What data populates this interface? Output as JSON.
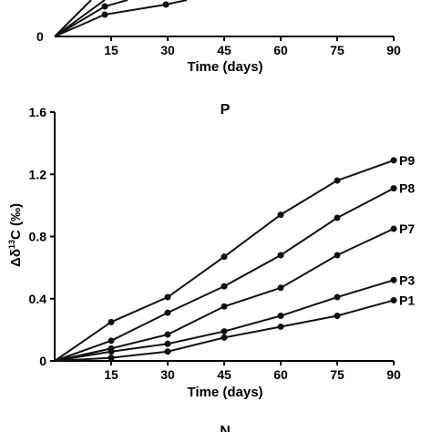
{
  "chart_data": [
    {
      "type": "line",
      "title": "",
      "xlabel": "Time (days)",
      "ylabel": "",
      "x_ticks": [
        "15",
        "30",
        "45",
        "60",
        "75",
        "90"
      ],
      "y_ticks": [
        "0"
      ],
      "x": [
        0,
        15,
        30
      ],
      "series": [
        {
          "name": "",
          "values": [
            0,
            0.13,
            0.2
          ]
        }
      ]
    },
    {
      "type": "line",
      "title": "P",
      "xlabel": "Time (days)",
      "ylabel": "Δδ13C (‰)",
      "ylabel_parts": {
        "pre": "Δδ",
        "sup": "13",
        "post": "C (‰)"
      },
      "xlim": [
        0,
        90
      ],
      "ylim": [
        0,
        1.6
      ],
      "x_ticks": [
        "15",
        "30",
        "45",
        "60",
        "75",
        "90"
      ],
      "y_ticks": [
        "0",
        "0.4",
        "0.8",
        "1.2",
        "1.6"
      ],
      "x": [
        0,
        15,
        30,
        45,
        60,
        75,
        90
      ],
      "series": [
        {
          "name": "P9",
          "values": [
            0,
            0.25,
            0.41,
            0.67,
            0.94,
            1.16,
            1.29
          ]
        },
        {
          "name": "P8",
          "values": [
            0,
            0.13,
            0.31,
            0.48,
            0.68,
            0.92,
            1.11
          ]
        },
        {
          "name": "P7",
          "values": [
            0,
            0.08,
            0.17,
            0.35,
            0.47,
            0.68,
            0.85
          ]
        },
        {
          "name": "P3",
          "values": [
            0,
            0.06,
            0.11,
            0.19,
            0.29,
            0.41,
            0.52
          ]
        },
        {
          "name": "P1",
          "values": [
            0,
            0.02,
            0.06,
            0.15,
            0.22,
            0.29,
            0.39
          ]
        }
      ]
    },
    {
      "type": "line",
      "title": "N",
      "xlabel": "",
      "ylabel": ""
    }
  ]
}
